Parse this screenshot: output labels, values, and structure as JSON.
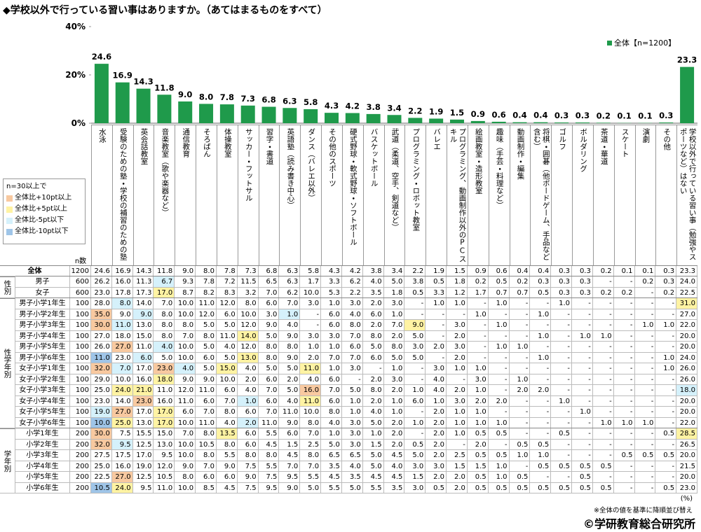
{
  "chart_data": {
    "type": "bar",
    "title": "◆学校以外で行っている習い事はありますか。（あてはまるものをすべて）",
    "categories": [
      "水泳",
      "受験のための塾・学校の補習のための塾",
      "英会話教室",
      "音楽教室（歌や楽器など）",
      "通信教育",
      "そろばん",
      "体操教室",
      "サッカー・フットサル",
      "習字・書道",
      "英語塾（読み書き中心）",
      "ダンス（バレエ以外）",
      "その他のスポーツ",
      "硬式野球・軟式野球・ソフトボール",
      "バスケットボール",
      "武道（柔道、空手、剣道など）",
      "プログラミング・ロボット教室",
      "バレエ",
      "プログラミング、動画制作以外のPCスキル",
      "絵画教室・造形教室",
      "趣味（手芸・料理など）",
      "動画制作・編集",
      "将棋・囲碁（他ボードゲーム、手品など含む）",
      "ゴルフ",
      "ボルダリング",
      "茶道・華道",
      "スケート",
      "演劇",
      "その他",
      "学校以外で行っている習い事（勉強やスポーツなど）はない"
    ],
    "series": [
      {
        "name": "全体【n=1200】",
        "color": "#1f9a4b",
        "values": [
          24.6,
          16.9,
          14.3,
          11.8,
          9,
          8,
          7.8,
          7.3,
          6.8,
          6.3,
          5.8,
          4.3,
          4.2,
          3.8,
          3.4,
          2.2,
          1.9,
          1.5,
          0.9,
          0.6,
          0.4,
          0.4,
          0.3,
          0.3,
          0.2,
          0.1,
          0.1,
          0.3,
          23.3
        ],
        "value_labels": [
          "24.6",
          "16.9",
          "14.3",
          "11.8",
          "9.0",
          "8.0",
          "7.8",
          "7.3",
          "6.8",
          "6.3",
          "5.8",
          "4.3",
          "4.2",
          "3.8",
          "3.4",
          "2.2",
          "1.9",
          "1.5",
          "0.9",
          "0.6",
          "0.4",
          "0.4",
          "0.3",
          "0.3",
          "0.2",
          "0.1",
          "0.1",
          "0.3",
          "23.3"
        ]
      }
    ],
    "ylim": [
      0,
      40
    ],
    "yticks": [
      {
        "value": 0,
        "label": "0%"
      },
      {
        "value": 20,
        "label": "20%"
      },
      {
        "value": 40,
        "label": "40%"
      }
    ],
    "grid": false
  },
  "color_legend": {
    "title": "n=30以上で",
    "items": [
      {
        "label": "全体比+10pt以上",
        "color": "#f8c9a0"
      },
      {
        "label": "全体比+5pt以上",
        "color": "#fff3a3"
      },
      {
        "label": "全体比-5pt以下",
        "color": "#d5f1fb"
      },
      {
        "label": "全体比-10pt以下",
        "color": "#9fc5e8"
      }
    ]
  },
  "table": {
    "n_header": "n数",
    "total": {
      "label": "全体",
      "n": "1200",
      "cells": [
        "24.6",
        "16.9",
        "14.3",
        "11.8",
        "9.0",
        "8.0",
        "7.8",
        "7.3",
        "6.8",
        "6.3",
        "5.8",
        "4.3",
        "4.2",
        "3.8",
        "3.4",
        "2.2",
        "1.9",
        "1.5",
        "0.9",
        "0.6",
        "0.4",
        "0.4",
        "0.3",
        "0.3",
        "0.2",
        "0.1",
        "0.1",
        "0.3",
        "23.3"
      ],
      "highlights": {}
    },
    "groups": [
      {
        "label": "性別",
        "rows": [
          {
            "label": "男子",
            "n": "600",
            "cells": [
              "26.2",
              "16.0",
              "11.3",
              "6.7",
              "9.3",
              "7.8",
              "7.2",
              "11.5",
              "6.5",
              "6.3",
              "1.7",
              "3.3",
              "6.2",
              "4.0",
              "5.0",
              "3.8",
              "0.5",
              "1.8",
              "0.2",
              "0.5",
              "0.2",
              "0.3",
              "0.3",
              "0.3",
              "-",
              "-",
              "0.2",
              "0.3",
              "24.0"
            ],
            "highlights": {
              "3": "#d5f1fb"
            }
          },
          {
            "label": "女子",
            "n": "600",
            "cells": [
              "23.0",
              "17.8",
              "17.3",
              "17.0",
              "8.7",
              "8.2",
              "8.3",
              "3.2",
              "7.0",
              "6.2",
              "10.0",
              "5.3",
              "2.2",
              "3.5",
              "1.8",
              "0.5",
              "3.3",
              "1.2",
              "1.7",
              "0.7",
              "0.7",
              "0.5",
              "0.3",
              "0.3",
              "0.2",
              "0.2",
              "-",
              "0.2",
              "22.5"
            ],
            "highlights": {
              "3": "#fff3a3"
            }
          }
        ]
      },
      {
        "label": "性学年別",
        "rows": [
          {
            "label": "男子小学1年生",
            "n": "100",
            "cells": [
              "28.0",
              "8.0",
              "14.0",
              "7.0",
              "10.0",
              "11.0",
              "12.0",
              "8.0",
              "6.0",
              "7.0",
              "3.0",
              "1.0",
              "3.0",
              "2.0",
              "3.0",
              "-",
              "1.0",
              "1.0",
              "-",
              "1.0",
              "-",
              "-",
              "1.0",
              "-",
              "-",
              "-",
              "-",
              "-",
              "31.0"
            ],
            "highlights": {
              "1": "#d5f1fb",
              "28": "#fff3a3"
            }
          },
          {
            "label": "男子小学2年生",
            "n": "100",
            "cells": [
              "35.0",
              "9.0",
              "9.0",
              "8.0",
              "10.0",
              "12.0",
              "6.0",
              "10.0",
              "3.0",
              "1.0",
              "-",
              "6.0",
              "4.0",
              "6.0",
              "1.0",
              "-",
              "-",
              "-",
              "1.0",
              "-",
              "-",
              "1.0",
              "-",
              "-",
              "-",
              "-",
              "-",
              "-",
              "27.0"
            ],
            "highlights": {
              "0": "#f8c9a0",
              "2": "#d5f1fb",
              "9": "#d5f1fb"
            }
          },
          {
            "label": "男子小学3年生",
            "n": "100",
            "cells": [
              "30.0",
              "11.0",
              "13.0",
              "8.0",
              "8.0",
              "5.0",
              "5.0",
              "12.0",
              "9.0",
              "4.0",
              "-",
              "6.0",
              "8.0",
              "2.0",
              "7.0",
              "9.0",
              "-",
              "3.0",
              "-",
              "1.0",
              "-",
              "-",
              "-",
              "-",
              "-",
              "-",
              "1.0",
              "1.0",
              "22.0"
            ],
            "highlights": {
              "0": "#f8c9a0",
              "1": "#d5f1fb",
              "15": "#fff3a3"
            }
          },
          {
            "label": "男子小学4年生",
            "n": "100",
            "cells": [
              "27.0",
              "18.0",
              "15.0",
              "8.0",
              "7.0",
              "8.0",
              "11.0",
              "14.0",
              "5.0",
              "9.0",
              "3.0",
              "3.0",
              "7.0",
              "8.0",
              "2.0",
              "5.0",
              "-",
              "2.0",
              "-",
              "-",
              "-",
              "1.0",
              "-",
              "1.0",
              "1.0",
              "-",
              "-",
              "-",
              "20.0"
            ],
            "highlights": {
              "7": "#fff3a3"
            }
          },
          {
            "label": "男子小学5年生",
            "n": "100",
            "cells": [
              "26.0",
              "27.0",
              "11.0",
              "4.0",
              "10.0",
              "5.0",
              "4.0",
              "12.0",
              "8.0",
              "8.0",
              "1.0",
              "1.0",
              "6.0",
              "5.0",
              "8.0",
              "3.0",
              "2.0",
              "3.0",
              "-",
              "1.0",
              "1.0",
              "-",
              "-",
              "-",
              "-",
              "-",
              "-",
              "-",
              "20.0"
            ],
            "highlights": {
              "1": "#f8c9a0",
              "3": "#d5f1fb"
            }
          },
          {
            "label": "男子小学6年生",
            "n": "100",
            "cells": [
              "11.0",
              "23.0",
              "6.0",
              "5.0",
              "10.0",
              "6.0",
              "5.0",
              "13.0",
              "8.0",
              "9.0",
              "2.0",
              "7.0",
              "7.0",
              "6.0",
              "5.0",
              "5.0",
              "-",
              "2.0",
              "-",
              "-",
              "-",
              "1.0",
              "-",
              "-",
              "-",
              "-",
              "-",
              "1.0",
              "24.0"
            ],
            "highlights": {
              "0": "#9fc5e8",
              "2": "#d5f1fb",
              "7": "#fff3a3"
            }
          },
          {
            "label": "女子小学1年生",
            "n": "100",
            "cells": [
              "32.0",
              "7.0",
              "17.0",
              "23.0",
              "4.0",
              "5.0",
              "15.0",
              "4.0",
              "5.0",
              "5.0",
              "11.0",
              "1.0",
              "3.0",
              "-",
              "1.0",
              "-",
              "3.0",
              "1.0",
              "1.0",
              "-",
              "-",
              "-",
              "-",
              "-",
              "-",
              "-",
              "-",
              "1.0",
              "26.0"
            ],
            "highlights": {
              "0": "#f8c9a0",
              "1": "#d5f1fb",
              "3": "#f8c9a0",
              "4": "#d5f1fb",
              "6": "#fff3a3",
              "10": "#fff3a3"
            }
          },
          {
            "label": "女子小学2年生",
            "n": "100",
            "cells": [
              "29.0",
              "10.0",
              "16.0",
              "18.0",
              "9.0",
              "9.0",
              "10.0",
              "2.0",
              "6.0",
              "2.0",
              "4.0",
              "6.0",
              "-",
              "2.0",
              "3.0",
              "-",
              "4.0",
              "-",
              "3.0",
              "-",
              "1.0",
              "-",
              "-",
              "-",
              "-",
              "-",
              "-",
              "-",
              "26.0"
            ],
            "highlights": {
              "3": "#fff3a3"
            }
          },
          {
            "label": "女子小学3年生",
            "n": "100",
            "cells": [
              "25.0",
              "24.0",
              "21.0",
              "11.0",
              "12.0",
              "11.0",
              "6.0",
              "4.0",
              "7.0",
              "5.0",
              "16.0",
              "7.0",
              "5.0",
              "8.0",
              "2.0",
              "1.0",
              "4.0",
              "2.0",
              "1.0",
              "-",
              "2.0",
              "2.0",
              "-",
              "-",
              "-",
              "-",
              "-",
              "-",
              "18.0"
            ],
            "highlights": {
              "1": "#fff3a3",
              "2": "#fff3a3",
              "10": "#f8c9a0",
              "28": "#d5f1fb"
            }
          },
          {
            "label": "女子小学4年生",
            "n": "100",
            "cells": [
              "23.0",
              "14.0",
              "23.0",
              "16.0",
              "11.0",
              "6.0",
              "7.0",
              "1.0",
              "6.0",
              "4.0",
              "11.0",
              "6.0",
              "1.0",
              "2.0",
              "1.0",
              "6.0",
              "1.0",
              "3.0",
              "2.0",
              "2.0",
              "-",
              "-",
              "1.0",
              "-",
              "-",
              "-",
              "-",
              "-",
              "20.0"
            ],
            "highlights": {
              "2": "#f8c9a0",
              "7": "#d5f1fb",
              "10": "#fff3a3"
            }
          },
          {
            "label": "女子小学5年生",
            "n": "100",
            "cells": [
              "19.0",
              "27.0",
              "17.0",
              "17.0",
              "6.0",
              "7.0",
              "8.0",
              "6.0",
              "7.0",
              "11.0",
              "10.0",
              "8.0",
              "1.0",
              "4.0",
              "1.0",
              "-",
              "2.0",
              "1.0",
              "1.0",
              "-",
              "-",
              "-",
              "-",
              "1.0",
              "-",
              "-",
              "-",
              "-",
              "20.0"
            ],
            "highlights": {
              "0": "#d5f1fb",
              "1": "#f8c9a0",
              "3": "#fff3a3"
            }
          },
          {
            "label": "女子小学6年生",
            "n": "100",
            "cells": [
              "10.0",
              "25.0",
              "13.0",
              "17.0",
              "10.0",
              "11.0",
              "4.0",
              "2.0",
              "11.0",
              "9.0",
              "8.0",
              "4.0",
              "3.0",
              "5.0",
              "2.0",
              "1.0",
              "2.0",
              "1.0",
              "1.0",
              "1.0",
              "-",
              "-",
              "-",
              "-",
              "1.0",
              "1.0",
              "1.0",
              "-",
              "22.0"
            ],
            "highlights": {
              "0": "#9fc5e8",
              "1": "#fff3a3",
              "3": "#fff3a3",
              "7": "#d5f1fb"
            }
          }
        ]
      },
      {
        "label": "学年別",
        "rows": [
          {
            "label": "小学1年生",
            "n": "200",
            "cells": [
              "30.0",
              "7.5",
              "15.5",
              "15.0",
              "7.0",
              "8.0",
              "13.5",
              "6.0",
              "5.5",
              "6.0",
              "7.0",
              "1.0",
              "3.0",
              "1.0",
              "2.0",
              "-",
              "2.0",
              "1.0",
              "0.5",
              "0.5",
              "-",
              "-",
              "0.5",
              "-",
              "-",
              "-",
              "-",
              "0.5",
              "28.5"
            ],
            "highlights": {
              "0": "#f8c9a0",
              "6": "#fff3a3",
              "28": "#fff3a3"
            }
          },
          {
            "label": "小学2年生",
            "n": "200",
            "cells": [
              "32.0",
              "9.5",
              "12.5",
              "13.0",
              "10.0",
              "10.5",
              "8.0",
              "6.0",
              "4.5",
              "1.5",
              "2.5",
              "5.0",
              "3.0",
              "1.5",
              "2.0",
              "0.5",
              "2.0",
              "-",
              "2.0",
              "-",
              "0.5",
              "0.5",
              "-",
              "-",
              "-",
              "-",
              "-",
              "-",
              "26.5"
            ],
            "highlights": {
              "0": "#f8c9a0",
              "1": "#d5f1fb"
            }
          },
          {
            "label": "小学3年生",
            "n": "200",
            "cells": [
              "27.5",
              "17.5",
              "17.0",
              "9.5",
              "10.0",
              "8.0",
              "5.5",
              "8.0",
              "8.0",
              "4.5",
              "8.0",
              "6.5",
              "6.5",
              "5.0",
              "4.5",
              "5.0",
              "2.0",
              "2.5",
              "0.5",
              "0.5",
              "1.0",
              "1.0",
              "-",
              "-",
              "-",
              "0.5",
              "0.5",
              "0.5",
              "20.0"
            ],
            "highlights": {}
          },
          {
            "label": "小学4年生",
            "n": "200",
            "cells": [
              "25.0",
              "16.0",
              "19.0",
              "12.0",
              "9.0",
              "7.0",
              "9.0",
              "7.5",
              "5.5",
              "7.0",
              "7.0",
              "3.5",
              "4.0",
              "5.0",
              "4.0",
              "3.0",
              "3.0",
              "1.5",
              "1.5",
              "1.0",
              "-",
              "0.5",
              "0.5",
              "0.5",
              "0.5",
              "-",
              "-",
              "-",
              "21.5"
            ],
            "highlights": {}
          },
          {
            "label": "小学5年生",
            "n": "200",
            "cells": [
              "22.5",
              "27.0",
              "12.5",
              "10.5",
              "8.0",
              "6.0",
              "6.0",
              "9.0",
              "7.5",
              "9.5",
              "5.5",
              "4.5",
              "3.5",
              "4.5",
              "4.5",
              "1.5",
              "2.0",
              "2.0",
              "0.5",
              "1.0",
              "0.5",
              "-",
              "-",
              "0.5",
              "-",
              "-",
              "-",
              "-",
              "20.0"
            ],
            "highlights": {
              "1": "#f8c9a0"
            }
          },
          {
            "label": "小学6年生",
            "n": "200",
            "cells": [
              "10.5",
              "24.0",
              "9.5",
              "11.0",
              "10.0",
              "8.5",
              "4.5",
              "7.5",
              "9.5",
              "9.0",
              "5.0",
              "5.5",
              "5.0",
              "5.5",
              "3.5",
              "3.0",
              "0.5",
              "2.0",
              "0.5",
              "0.5",
              "0.5",
              "0.5",
              "0.5",
              "0.5",
              "0.5",
              "-",
              "-",
              "0.5",
              "23.0"
            ],
            "highlights": {
              "0": "#9fc5e8",
              "1": "#fff3a3"
            }
          }
        ]
      }
    ]
  },
  "footer": {
    "unit": "(%)",
    "note": "※全体の値を基準に降順並び替え",
    "copyright": "©学研教育総合研究所"
  }
}
